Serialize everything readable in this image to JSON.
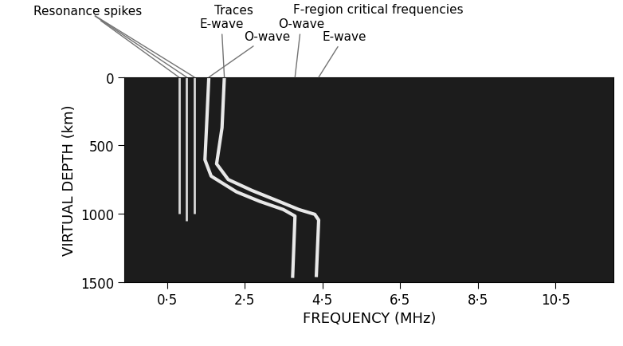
{
  "chart_data": {
    "type": "line",
    "xlabel": "FREQUENCY (MHz)",
    "ylabel": "VIRTUAL DEPTH (km)",
    "xlim": [
      -0.6,
      12.0
    ],
    "ylim": [
      1500,
      0
    ],
    "xticks": [
      {
        "value": 0.5,
        "label": "0·5"
      },
      {
        "value": 2.5,
        "label": "2·5"
      },
      {
        "value": 4.5,
        "label": "4·5"
      },
      {
        "value": 6.5,
        "label": "6·5"
      },
      {
        "value": 8.5,
        "label": "8·5"
      },
      {
        "value": 10.5,
        "label": "10·5"
      }
    ],
    "yticks": [
      0,
      500,
      1000,
      1500
    ],
    "grid": false,
    "series": [
      {
        "color": "#e8e8e8",
        "line_style": "solid",
        "x": [
          1.97,
          1.91,
          1.77,
          2.07,
          2.68,
          3.29,
          3.89,
          4.3,
          4.4,
          4.34
        ],
        "values": [
          0,
          370,
          635,
          750,
          830,
          900,
          970,
          1005,
          1047,
          1453
        ]
      },
      {
        "color": "#e8e8e8",
        "line_style": "solid",
        "x": [
          1.57,
          1.51,
          1.47,
          1.63,
          2.28,
          2.88,
          3.49,
          3.79,
          3.73
        ],
        "values": [
          0,
          370,
          605,
          725,
          840,
          910,
          970,
          1018,
          1459
        ]
      }
    ],
    "resonance_spikes": {
      "color": "#d8d8d8",
      "x": [
        0.8,
        1.0,
        1.2
      ],
      "values": [
        1000,
        1050,
        1000
      ]
    },
    "annotations": [
      {
        "text": "Resonance spikes",
        "points": [
          [
            0.8,
            0
          ],
          [
            1.0,
            0
          ],
          [
            1.2,
            0
          ]
        ]
      },
      {
        "text": "Traces",
        "points": []
      },
      {
        "text": "E-wave",
        "points": [
          [
            1.97,
            0
          ]
        ]
      },
      {
        "text": "O-wave",
        "points": [
          [
            1.57,
            0
          ]
        ]
      },
      {
        "text": "F-region critical frequencies",
        "points": []
      },
      {
        "text": "O-wave",
        "points": [
          [
            3.79,
            0
          ]
        ]
      },
      {
        "text": "E-wave",
        "points": [
          [
            4.4,
            0
          ]
        ]
      }
    ]
  }
}
